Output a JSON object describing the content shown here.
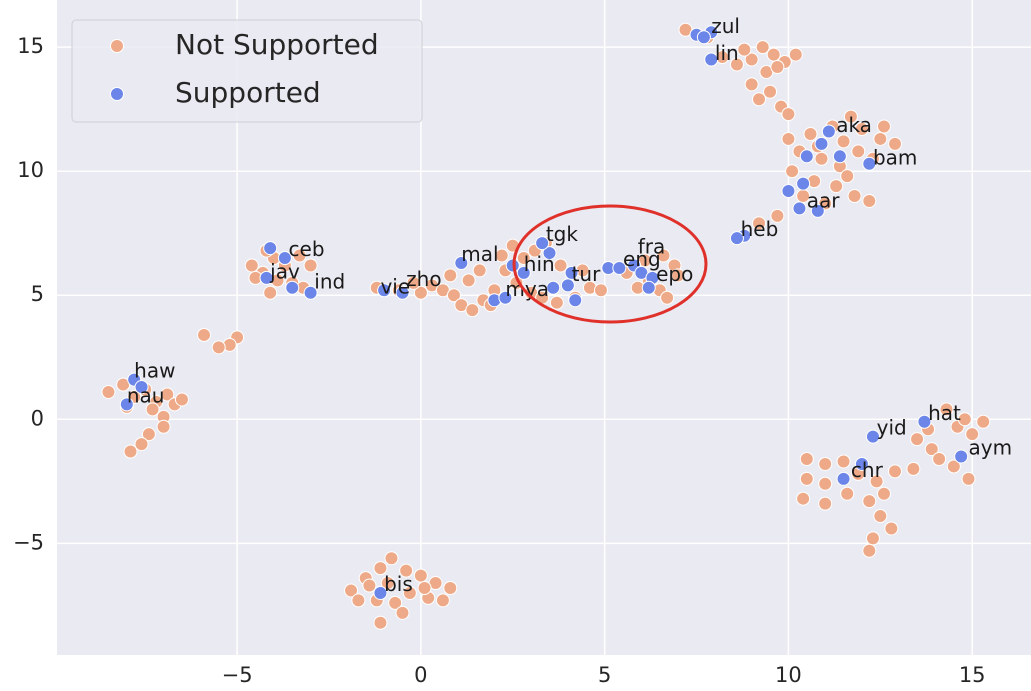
{
  "chart_data": {
    "type": "scatter",
    "xlim": [
      -9.9,
      16.6
    ],
    "ylim": [
      -9.5,
      16.9
    ],
    "xticks": [
      {
        "value": -5,
        "label": "−5"
      },
      0,
      5,
      10,
      15
    ],
    "yticks": [
      {
        "value": -5,
        "label": "−5"
      },
      0,
      5,
      10,
      15
    ],
    "grid": true,
    "legend": "upper left",
    "series": [
      {
        "name": "Not Supported",
        "color": "#eeaa88",
        "x": [
          7.2,
          7.8,
          8.2,
          8.6,
          9.0,
          9.3,
          9.6,
          9.9,
          10.2,
          9.4,
          9.0,
          9.5,
          9.2,
          9.8,
          10.0,
          8.8,
          9.7,
          10.0,
          10.6,
          11.2,
          11.7,
          12.0,
          12.5,
          12.9,
          10.3,
          10.9,
          11.4,
          11.9,
          12.3,
          10.1,
          10.7,
          11.3,
          11.8,
          12.2,
          10.4,
          11.0,
          9.7,
          9.2,
          11.6,
          12.6,
          10.8,
          11.5,
          -1.2,
          -0.6,
          0.0,
          0.3,
          0.6,
          0.9,
          1.1,
          1.4,
          1.7,
          2.0,
          1.3,
          0.8,
          1.6,
          2.2,
          2.5,
          2.8,
          3.1,
          3.4,
          2.6,
          3.0,
          3.3,
          3.7,
          4.2,
          4.6,
          4.9,
          3.8,
          4.4,
          -0.2,
          1.9,
          2.3,
          5.6,
          6.1,
          6.6,
          6.9,
          7.0,
          6.5,
          6.2,
          5.9,
          6.7,
          -4.6,
          -4.3,
          -4.0,
          -3.7,
          -3.3,
          -3.0,
          -3.5,
          -4.1,
          -4.5,
          -3.2,
          -3.9,
          -4.2,
          -5.0,
          -5.2,
          -5.5,
          -5.9,
          -8.5,
          -8.1,
          -7.8,
          -7.5,
          -7.2,
          -6.9,
          -6.7,
          -6.5,
          -7.3,
          -8.0,
          -7.0,
          -7.0,
          -7.4,
          -7.6,
          -7.9,
          -1.9,
          -1.5,
          -1.1,
          -0.8,
          -0.4,
          0.0,
          0.4,
          0.8,
          0.6,
          0.2,
          -0.3,
          -0.7,
          -1.2,
          -1.7,
          -0.5,
          -1.1,
          0.1,
          -1.4,
          -0.9,
          10.5,
          11.0,
          11.5,
          11.9,
          12.4,
          12.6,
          12.2,
          11.6,
          11.0,
          10.5,
          10.4,
          11.0,
          12.5,
          12.8,
          12.3,
          12.2,
          12.9,
          13.5,
          13.9,
          14.3,
          14.6,
          15.0,
          15.3,
          14.1,
          14.5,
          14.9,
          13.4,
          14.8,
          13.8
        ],
        "values": [
          15.7,
          15.4,
          14.6,
          14.3,
          14.5,
          15.0,
          14.7,
          14.4,
          14.7,
          14.0,
          13.5,
          13.2,
          12.9,
          12.6,
          12.3,
          14.9,
          14.2,
          11.3,
          11.5,
          11.8,
          12.2,
          11.7,
          11.3,
          11.1,
          10.8,
          10.5,
          10.2,
          10.8,
          10.5,
          10.0,
          9.6,
          9.4,
          9.0,
          8.8,
          9.0,
          8.7,
          8.2,
          7.9,
          9.8,
          11.8,
          11.0,
          11.2,
          5.3,
          5.2,
          5.1,
          5.4,
          5.2,
          5.0,
          4.6,
          4.4,
          4.8,
          5.2,
          5.6,
          5.8,
          6.0,
          6.6,
          7.0,
          6.5,
          6.8,
          7.1,
          5.5,
          5.1,
          4.9,
          4.7,
          4.9,
          5.3,
          5.2,
          6.2,
          6.0,
          5.5,
          4.6,
          6.0,
          5.9,
          6.4,
          6.6,
          6.2,
          5.8,
          5.2,
          5.6,
          5.3,
          4.9,
          6.2,
          5.9,
          6.5,
          6.2,
          6.6,
          6.2,
          5.5,
          5.1,
          5.7,
          5.3,
          5.6,
          6.8,
          3.3,
          3.0,
          2.9,
          3.4,
          1.1,
          1.4,
          0.9,
          1.2,
          0.7,
          1.0,
          0.6,
          0.8,
          0.4,
          0.5,
          0.1,
          -0.3,
          -0.6,
          -1.0,
          -1.3,
          -6.9,
          -6.4,
          -6.0,
          -5.6,
          -6.1,
          -6.3,
          -6.6,
          -6.8,
          -7.3,
          -7.2,
          -7.0,
          -7.4,
          -7.3,
          -7.3,
          -7.8,
          -8.2,
          -6.8,
          -6.7,
          -6.6,
          -1.6,
          -1.8,
          -1.7,
          -2.2,
          -2.5,
          -3.0,
          -3.3,
          -3.0,
          -2.6,
          -2.4,
          -3.2,
          -3.4,
          -3.9,
          -4.4,
          -4.8,
          -5.3,
          -2.1,
          -0.8,
          -1.2,
          0.4,
          -0.3,
          -0.6,
          -0.1,
          -1.6,
          -1.9,
          -2.4,
          -2.0,
          0.0,
          -0.4
        ]
      },
      {
        "name": "Supported",
        "color": "#6b85e8",
        "x": [
          7.9,
          7.5,
          7.7,
          7.9,
          11.1,
          10.9,
          10.5,
          11.4,
          12.2,
          10.4,
          10.0,
          10.3,
          10.8,
          8.8,
          8.6,
          -4.1,
          -3.7,
          -4.2,
          -3.5,
          -3.0,
          -1.0,
          -0.5,
          1.1,
          3.5,
          3.3,
          2.5,
          2.8,
          2.0,
          2.3,
          4.1,
          4.0,
          3.6,
          4.2,
          5.1,
          5.4,
          5.8,
          6.0,
          6.3,
          6.2,
          -7.8,
          -7.6,
          -8.0,
          -1.1,
          12.3,
          12.0,
          11.5,
          13.7,
          14.7
        ],
        "values": [
          15.6,
          15.5,
          15.4,
          14.5,
          11.6,
          11.1,
          10.6,
          10.6,
          10.3,
          9.5,
          9.2,
          8.5,
          8.4,
          7.4,
          7.3,
          6.9,
          6.5,
          5.7,
          5.3,
          5.1,
          5.2,
          5.1,
          6.3,
          6.7,
          7.1,
          6.2,
          5.9,
          4.8,
          4.9,
          5.9,
          5.4,
          5.3,
          4.8,
          6.1,
          6.1,
          6.2,
          5.9,
          5.7,
          5.3,
          1.6,
          1.3,
          0.6,
          -7.0,
          -0.7,
          -1.8,
          -2.4,
          -0.1,
          -1.5
        ]
      }
    ],
    "annotations": [
      {
        "text": "zul",
        "x": 7.9,
        "y": 15.8
      },
      {
        "text": "lin",
        "x": 8.0,
        "y": 14.7
      },
      {
        "text": "aka",
        "x": 11.3,
        "y": 11.8
      },
      {
        "text": "bam",
        "x": 12.3,
        "y": 10.5
      },
      {
        "text": "aar",
        "x": 10.5,
        "y": 8.75
      },
      {
        "text": "heb",
        "x": 8.7,
        "y": 7.6
      },
      {
        "text": "ceb",
        "x": -3.6,
        "y": 6.8
      },
      {
        "text": "jav",
        "x": -4.1,
        "y": 5.9
      },
      {
        "text": "ind",
        "x": -2.9,
        "y": 5.5
      },
      {
        "text": "vie",
        "x": -1.1,
        "y": 5.3
      },
      {
        "text": "zho",
        "x": -0.4,
        "y": 5.6
      },
      {
        "text": "mal",
        "x": 1.1,
        "y": 6.6
      },
      {
        "text": "tgk",
        "x": 3.4,
        "y": 7.4
      },
      {
        "text": "hin",
        "x": 2.8,
        "y": 6.2
      },
      {
        "text": "mya",
        "x": 2.3,
        "y": 5.2
      },
      {
        "text": "tur",
        "x": 4.1,
        "y": 5.8
      },
      {
        "text": "fra",
        "x": 5.9,
        "y": 6.9
      },
      {
        "text": "eng",
        "x": 5.5,
        "y": 6.4
      },
      {
        "text": "epo",
        "x": 6.4,
        "y": 5.8
      },
      {
        "text": "haw",
        "x": -7.8,
        "y": 1.9
      },
      {
        "text": "nau",
        "x": -8.0,
        "y": 0.9
      },
      {
        "text": "bis",
        "x": -1.0,
        "y": -6.7
      },
      {
        "text": "hat",
        "x": 13.8,
        "y": 0.2
      },
      {
        "text": "yid",
        "x": 12.4,
        "y": -0.4
      },
      {
        "text": "chr",
        "x": 11.7,
        "y": -2.1
      },
      {
        "text": "aym",
        "x": 14.9,
        "y": -1.2
      }
    ]
  }
}
